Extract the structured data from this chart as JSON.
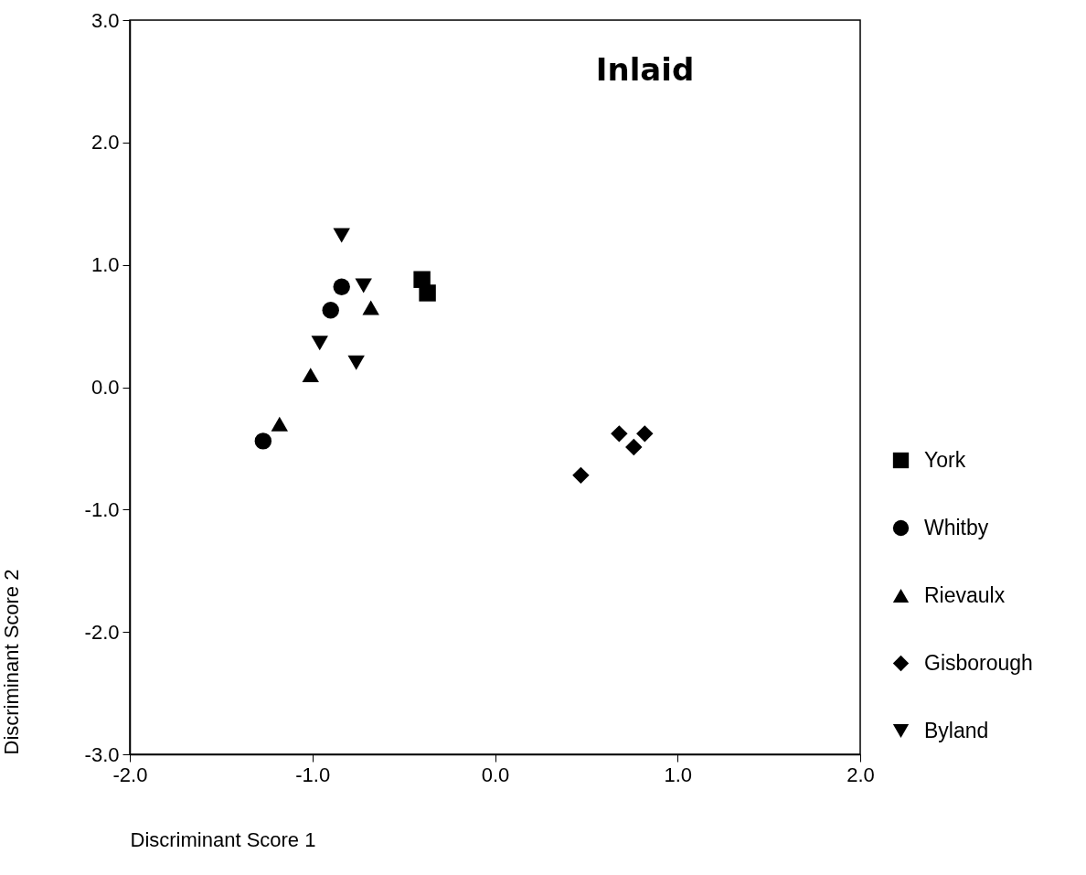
{
  "chart_data": {
    "type": "scatter",
    "title": "Inlaid",
    "xlabel": "Discriminant Score 1",
    "ylabel": "Discriminant Score 2",
    "xlim": [
      -2,
      2
    ],
    "ylim": [
      -3,
      3
    ],
    "xticks": [
      {
        "value": -2,
        "label": "-2.0"
      },
      {
        "value": -1,
        "label": "-1.0"
      },
      {
        "value": 0,
        "label": "0.0"
      },
      {
        "value": 1,
        "label": "1.0"
      },
      {
        "value": 2,
        "label": "2.0"
      }
    ],
    "yticks": [
      {
        "value": -3,
        "label": "-3.0"
      },
      {
        "value": -2,
        "label": "-2.0"
      },
      {
        "value": -1,
        "label": "-1.0"
      },
      {
        "value": 0,
        "label": "0.0"
      },
      {
        "value": 1,
        "label": "1.0"
      },
      {
        "value": 2,
        "label": "2.0"
      },
      {
        "value": 3,
        "label": "3.0"
      }
    ],
    "grid": false,
    "legend": "right",
    "series": [
      {
        "name": "York",
        "color": "#000000",
        "marker": "square",
        "x": [
          -0.4,
          -0.37
        ],
        "values": [
          0.88,
          0.77
        ]
      },
      {
        "name": "Whitby",
        "color": "#000000",
        "marker": "circle",
        "x": [
          -0.84,
          -0.9,
          -1.27
        ],
        "values": [
          0.82,
          0.63,
          -0.44
        ]
      },
      {
        "name": "Rievaulx",
        "color": "#000000",
        "marker": "triangle",
        "x": [
          -1.18,
          -1.01,
          -0.68
        ],
        "values": [
          -0.3,
          0.1,
          0.65
        ]
      },
      {
        "name": "Gisborough",
        "color": "#000000",
        "marker": "diamond",
        "x": [
          0.47,
          0.68,
          0.76,
          0.82
        ],
        "values": [
          -0.72,
          -0.38,
          -0.49,
          -0.38
        ]
      },
      {
        "name": "Byland",
        "color": "#000000",
        "marker": "triangle-down",
        "x": [
          -0.84,
          -0.72,
          -0.96,
          -0.76
        ],
        "values": [
          1.24,
          0.83,
          0.36,
          0.2
        ]
      }
    ]
  }
}
